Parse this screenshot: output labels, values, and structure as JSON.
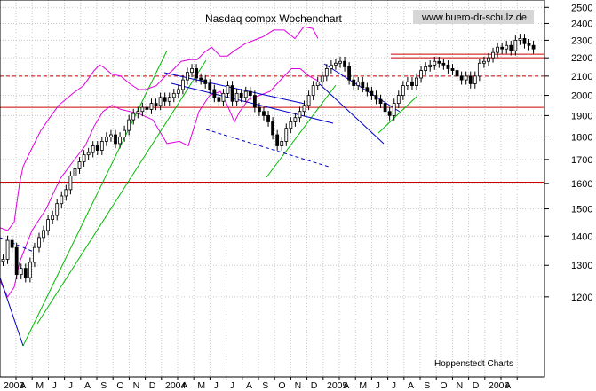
{
  "chart_data": {
    "type": "candlestick",
    "title": "Nasdaq compx Wochenchart",
    "watermark": "www.buero-dr-schulz.de",
    "source": "Hoppenstedt Charts",
    "ylim": [
      1150,
      2560
    ],
    "y_ticks": [
      "2500",
      "2400",
      "2300",
      "2200",
      "2100",
      "2000",
      "1900",
      "1800",
      "1700",
      "1600",
      "1500",
      "1400",
      "1300",
      "1200"
    ],
    "x_labels": [
      "2003",
      "A",
      "M",
      "J",
      "J",
      "A",
      "S",
      "O",
      "N",
      "D",
      "2004",
      "A",
      "M",
      "J",
      "J",
      "A",
      "S",
      "O",
      "N",
      "D",
      "2005",
      "A",
      "M",
      "J",
      "J",
      "A",
      "S",
      "O",
      "N",
      "D",
      "2006",
      "A"
    ],
    "series": [
      {
        "kind": "weekly-close",
        "values": [
          1320,
          1385,
          1360,
          1270,
          1290,
          1260,
          1310,
          1360,
          1395,
          1420,
          1460,
          1475,
          1520,
          1550,
          1575,
          1630,
          1660,
          1690,
          1720,
          1730,
          1760,
          1740,
          1780,
          1800,
          1810,
          1770,
          1800,
          1830,
          1880,
          1910,
          1920,
          1940,
          1930,
          1960,
          1950,
          1990,
          1970,
          1990,
          2010,
          2030,
          2080,
          2120,
          2140,
          2090,
          2080,
          2060,
          2030,
          1990,
          1970,
          2010,
          2050,
          1970,
          2010,
          1990,
          2020,
          2000,
          1940,
          1920,
          1900,
          1870,
          1810,
          1760,
          1780,
          1840,
          1870,
          1890,
          1920,
          1950,
          2000,
          2050,
          2070,
          2100,
          2140,
          2160,
          2170,
          2180,
          2150,
          2080,
          2050,
          2070,
          2040,
          2020,
          2000,
          1980,
          1960,
          1920,
          1900,
          1960,
          2000,
          2050,
          2070,
          2050,
          2090,
          2130,
          2150,
          2160,
          2180,
          2170,
          2160,
          2140,
          2130,
          2100,
          2080,
          2100,
          2060,
          2100,
          2170,
          2180,
          2200,
          2230,
          2260,
          2250,
          2270,
          2240,
          2300,
          2310,
          2280,
          2270,
          2250
        ]
      }
    ],
    "bollinger_upper": [
      [
        1320,
        1430
      ],
      [
        1363,
        1420
      ],
      [
        1400,
        1450
      ],
      [
        1410,
        1500
      ],
      [
        1430,
        1600
      ],
      [
        1450,
        1670
      ],
      [
        1500,
        1750
      ],
      [
        1550,
        1830
      ],
      [
        1600,
        1890
      ],
      [
        1650,
        1950
      ],
      [
        1730,
        2010
      ],
      [
        1790,
        2050
      ],
      [
        1850,
        2130
      ],
      [
        1880,
        2160
      ],
      [
        1900,
        2150
      ],
      [
        1950,
        2110
      ],
      [
        2000,
        2100
      ],
      [
        2050,
        2060
      ],
      [
        2100,
        2030
      ],
      [
        2140,
        2030
      ],
      [
        2200,
        2050
      ],
      [
        2250,
        2100
      ],
      [
        2290,
        2130
      ],
      [
        2340,
        2180
      ],
      [
        2390,
        2190
      ],
      [
        2430,
        2190
      ],
      [
        2470,
        2230
      ],
      [
        2510,
        2260
      ],
      [
        2560,
        2210
      ],
      [
        2600,
        2210
      ],
      [
        2640,
        2240
      ],
      [
        2700,
        2280
      ],
      [
        2750,
        2300
      ],
      [
        2800,
        2320
      ],
      [
        2860,
        2360
      ],
      [
        2920,
        2360
      ],
      [
        2980,
        2310
      ],
      [
        3030,
        2380
      ],
      [
        3080,
        2370
      ],
      [
        3110,
        2310
      ]
    ],
    "bollinger_lower": [
      [
        1320,
        1250
      ],
      [
        1363,
        1200
      ],
      [
        1400,
        1230
      ],
      [
        1430,
        1310
      ],
      [
        1500,
        1420
      ],
      [
        1580,
        1500
      ],
      [
        1620,
        1560
      ],
      [
        1660,
        1620
      ],
      [
        1730,
        1690
      ],
      [
        1800,
        1760
      ],
      [
        1850,
        1850
      ],
      [
        1900,
        1920
      ],
      [
        1950,
        1950
      ],
      [
        2000,
        1930
      ],
      [
        2050,
        1920
      ],
      [
        2100,
        1910
      ],
      [
        2180,
        1880
      ],
      [
        2260,
        1770
      ],
      [
        2330,
        1780
      ],
      [
        2380,
        1760
      ],
      [
        2440,
        1920
      ],
      [
        2500,
        2000
      ],
      [
        2560,
        2020
      ],
      [
        2600,
        1950
      ],
      [
        2640,
        1870
      ],
      [
        2670,
        1920
      ],
      [
        2720,
        1980
      ],
      [
        2780,
        2000
      ],
      [
        2840,
        2020
      ],
      [
        2900,
        2080
      ],
      [
        2960,
        2140
      ],
      [
        3010,
        2140
      ],
      [
        3060,
        2100
      ],
      [
        3100,
        2080
      ],
      [
        3110,
        2080
      ]
    ],
    "horizontal_levels": [
      {
        "y": 1940,
        "style": "solid"
      },
      {
        "y": 1605,
        "style": "solid"
      },
      {
        "y": 2100,
        "style": "dashed"
      },
      {
        "y": 2200,
        "style": "solid"
      },
      {
        "y": 2220,
        "style": "solid"
      }
    ]
  }
}
